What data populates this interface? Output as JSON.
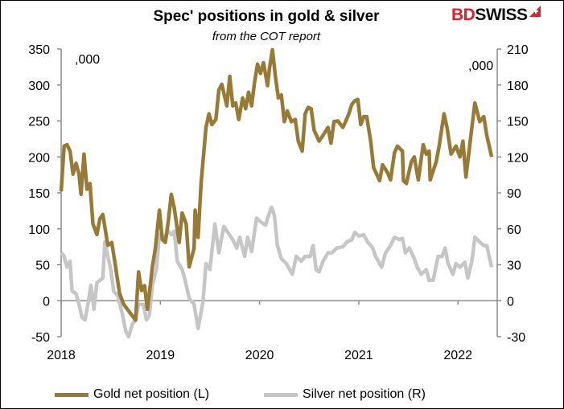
{
  "chart_data": {
    "type": "line",
    "title": "Spec' positions in gold & silver",
    "subtitle": "from the COT report",
    "brand": "BDSWISS",
    "left_unit": ",000",
    "right_unit": ",000",
    "x_ticks": [
      "2018",
      "2019",
      "2020",
      "2021",
      "2022"
    ],
    "xlim": [
      2018,
      2022.5
    ],
    "y_left": {
      "lim": [
        -50,
        350
      ],
      "ticks": [
        -50,
        0,
        50,
        100,
        150,
        200,
        250,
        300,
        350
      ]
    },
    "y_right": {
      "lim": [
        -30,
        210
      ],
      "ticks": [
        -30,
        0,
        30,
        60,
        90,
        120,
        150,
        180,
        210
      ]
    },
    "grid": false,
    "legend_placement": "bottom",
    "series": [
      {
        "name": "Gold net position (L)",
        "axis": "left",
        "color": "#977a36",
        "points": [
          [
            2018.0,
            152
          ],
          [
            2018.03,
            215
          ],
          [
            2018.06,
            217
          ],
          [
            2018.09,
            208
          ],
          [
            2018.12,
            176
          ],
          [
            2018.15,
            191
          ],
          [
            2018.18,
            176
          ],
          [
            2018.2,
            148
          ],
          [
            2018.23,
            204
          ],
          [
            2018.26,
            155
          ],
          [
            2018.29,
            163
          ],
          [
            2018.32,
            107
          ],
          [
            2018.36,
            92
          ],
          [
            2018.39,
            114
          ],
          [
            2018.42,
            120
          ],
          [
            2018.47,
            77
          ],
          [
            2018.51,
            81
          ],
          [
            2018.54,
            55
          ],
          [
            2018.59,
            10
          ],
          [
            2018.63,
            -5
          ],
          [
            2018.69,
            -16
          ],
          [
            2018.75,
            -27
          ],
          [
            2018.78,
            40
          ],
          [
            2018.81,
            14
          ],
          [
            2018.84,
            21
          ],
          [
            2018.87,
            -12
          ],
          [
            2018.92,
            47
          ],
          [
            2018.95,
            73
          ],
          [
            2018.99,
            126
          ],
          [
            2019.02,
            85
          ],
          [
            2019.05,
            81
          ],
          [
            2019.08,
            111
          ],
          [
            2019.11,
            148
          ],
          [
            2019.14,
            129
          ],
          [
            2019.19,
            81
          ],
          [
            2019.22,
            122
          ],
          [
            2019.26,
            107
          ],
          [
            2019.29,
            47
          ],
          [
            2019.34,
            73
          ],
          [
            2019.35,
            126
          ],
          [
            2019.38,
            88
          ],
          [
            2019.41,
            163
          ],
          [
            2019.46,
            241
          ],
          [
            2019.49,
            260
          ],
          [
            2019.52,
            245
          ],
          [
            2019.56,
            252
          ],
          [
            2019.59,
            293
          ],
          [
            2019.62,
            301
          ],
          [
            2019.67,
            271
          ],
          [
            2019.7,
            312
          ],
          [
            2019.73,
            271
          ],
          [
            2019.76,
            275
          ],
          [
            2019.79,
            252
          ],
          [
            2019.83,
            282
          ],
          [
            2019.86,
            267
          ],
          [
            2019.89,
            290
          ],
          [
            2019.92,
            271
          ],
          [
            2019.95,
            304
          ],
          [
            2019.98,
            329
          ],
          [
            2020.01,
            316
          ],
          [
            2020.04,
            331
          ],
          [
            2020.08,
            299
          ],
          [
            2020.1,
            323
          ],
          [
            2020.13,
            349
          ],
          [
            2020.16,
            312
          ],
          [
            2020.19,
            282
          ],
          [
            2020.22,
            286
          ],
          [
            2020.25,
            249
          ],
          [
            2020.28,
            264
          ],
          [
            2020.32,
            249
          ],
          [
            2020.36,
            252
          ],
          [
            2020.39,
            222
          ],
          [
            2020.43,
            208
          ],
          [
            2020.46,
            260
          ],
          [
            2020.49,
            269
          ],
          [
            2020.52,
            267
          ],
          [
            2020.55,
            237
          ],
          [
            2020.6,
            222
          ],
          [
            2020.64,
            230
          ],
          [
            2020.69,
            241
          ],
          [
            2020.72,
            219
          ],
          [
            2020.75,
            249
          ],
          [
            2020.79,
            250
          ],
          [
            2020.84,
            241
          ],
          [
            2020.87,
            250
          ],
          [
            2020.9,
            260
          ],
          [
            2020.93,
            273
          ],
          [
            2020.96,
            278
          ],
          [
            2020.99,
            280
          ],
          [
            2021.02,
            245
          ],
          [
            2021.05,
            256
          ],
          [
            2021.08,
            256
          ],
          [
            2021.12,
            222
          ],
          [
            2021.15,
            185
          ],
          [
            2021.18,
            176
          ],
          [
            2021.21,
            167
          ],
          [
            2021.24,
            189
          ],
          [
            2021.29,
            178
          ],
          [
            2021.32,
            168
          ],
          [
            2021.36,
            206
          ],
          [
            2021.39,
            215
          ],
          [
            2021.44,
            208
          ],
          [
            2021.45,
            167
          ],
          [
            2021.48,
            163
          ],
          [
            2021.53,
            193
          ],
          [
            2021.56,
            200
          ],
          [
            2021.6,
            168
          ],
          [
            2021.65,
            217
          ],
          [
            2021.68,
            204
          ],
          [
            2021.71,
            208
          ],
          [
            2021.72,
            168
          ],
          [
            2021.78,
            193
          ],
          [
            2021.81,
            215
          ],
          [
            2021.86,
            260
          ],
          [
            2021.89,
            241
          ],
          [
            2021.93,
            204
          ],
          [
            2021.98,
            215
          ],
          [
            2022.02,
            200
          ],
          [
            2022.05,
            222
          ],
          [
            2022.08,
            172
          ],
          [
            2022.14,
            241
          ],
          [
            2022.17,
            275
          ],
          [
            2022.22,
            249
          ],
          [
            2022.26,
            256
          ],
          [
            2022.29,
            230
          ],
          [
            2022.34,
            200
          ]
        ]
      },
      {
        "name": "Silver net position (R)",
        "axis": "right",
        "color": "#c6c6c6",
        "points": [
          [
            2018.0,
            40
          ],
          [
            2018.03,
            37
          ],
          [
            2018.06,
            28
          ],
          [
            2018.09,
            33
          ],
          [
            2018.11,
            8
          ],
          [
            2018.15,
            6
          ],
          [
            2018.18,
            -3
          ],
          [
            2018.21,
            -14
          ],
          [
            2018.24,
            -16
          ],
          [
            2018.27,
            -3
          ],
          [
            2018.3,
            13
          ],
          [
            2018.33,
            -7
          ],
          [
            2018.36,
            15
          ],
          [
            2018.39,
            17
          ],
          [
            2018.42,
            19
          ],
          [
            2018.44,
            49
          ],
          [
            2018.47,
            37
          ],
          [
            2018.5,
            26
          ],
          [
            2018.53,
            8
          ],
          [
            2018.57,
            4
          ],
          [
            2018.62,
            -12
          ],
          [
            2018.65,
            -25
          ],
          [
            2018.68,
            -30
          ],
          [
            2018.72,
            -19
          ],
          [
            2018.75,
            -16
          ],
          [
            2018.78,
            -3
          ],
          [
            2018.83,
            -3
          ],
          [
            2018.86,
            -16
          ],
          [
            2018.89,
            -12
          ],
          [
            2018.92,
            13
          ],
          [
            2018.96,
            26
          ],
          [
            2018.99,
            55
          ],
          [
            2019.04,
            53
          ],
          [
            2019.08,
            58
          ],
          [
            2019.11,
            55
          ],
          [
            2019.14,
            58
          ],
          [
            2019.17,
            33
          ],
          [
            2019.22,
            26
          ],
          [
            2019.25,
            17
          ],
          [
            2019.29,
            2
          ],
          [
            2019.34,
            -3
          ],
          [
            2019.38,
            -23
          ],
          [
            2019.43,
            -1
          ],
          [
            2019.46,
            31
          ],
          [
            2019.5,
            26
          ],
          [
            2019.55,
            64
          ],
          [
            2019.59,
            40
          ],
          [
            2019.64,
            62
          ],
          [
            2019.68,
            57
          ],
          [
            2019.73,
            51
          ],
          [
            2019.77,
            44
          ],
          [
            2019.8,
            53
          ],
          [
            2019.85,
            37
          ],
          [
            2019.88,
            53
          ],
          [
            2019.92,
            41
          ],
          [
            2019.97,
            69
          ],
          [
            2020.01,
            66
          ],
          [
            2020.06,
            63
          ],
          [
            2020.09,
            71
          ],
          [
            2020.12,
            78
          ],
          [
            2020.15,
            71
          ],
          [
            2020.18,
            46
          ],
          [
            2020.22,
            35
          ],
          [
            2020.27,
            31
          ],
          [
            2020.33,
            22
          ],
          [
            2020.37,
            37
          ],
          [
            2020.42,
            33
          ],
          [
            2020.46,
            37
          ],
          [
            2020.51,
            37
          ],
          [
            2020.54,
            46
          ],
          [
            2020.57,
            26
          ],
          [
            2020.6,
            24
          ],
          [
            2020.64,
            33
          ],
          [
            2020.69,
            40
          ],
          [
            2020.73,
            40
          ],
          [
            2020.78,
            44
          ],
          [
            2020.84,
            45
          ],
          [
            2020.88,
            49
          ],
          [
            2020.93,
            51
          ],
          [
            2020.96,
            57
          ],
          [
            2021.0,
            54
          ],
          [
            2021.05,
            55
          ],
          [
            2021.09,
            49
          ],
          [
            2021.14,
            44
          ],
          [
            2021.17,
            37
          ],
          [
            2021.23,
            28
          ],
          [
            2021.27,
            40
          ],
          [
            2021.32,
            46
          ],
          [
            2021.36,
            53
          ],
          [
            2021.41,
            51
          ],
          [
            2021.44,
            52
          ],
          [
            2021.47,
            40
          ],
          [
            2021.51,
            44
          ],
          [
            2021.56,
            35
          ],
          [
            2021.59,
            28
          ],
          [
            2021.63,
            22
          ],
          [
            2021.68,
            26
          ],
          [
            2021.71,
            17
          ],
          [
            2021.75,
            17
          ],
          [
            2021.8,
            37
          ],
          [
            2021.84,
            37
          ],
          [
            2021.87,
            44
          ],
          [
            2021.9,
            31
          ],
          [
            2021.95,
            22
          ],
          [
            2021.98,
            31
          ],
          [
            2022.02,
            28
          ],
          [
            2022.07,
            32
          ],
          [
            2022.1,
            19
          ],
          [
            2022.14,
            33
          ],
          [
            2022.17,
            53
          ],
          [
            2022.22,
            49
          ],
          [
            2022.26,
            46
          ],
          [
            2022.29,
            46
          ],
          [
            2022.34,
            28
          ]
        ]
      }
    ]
  }
}
